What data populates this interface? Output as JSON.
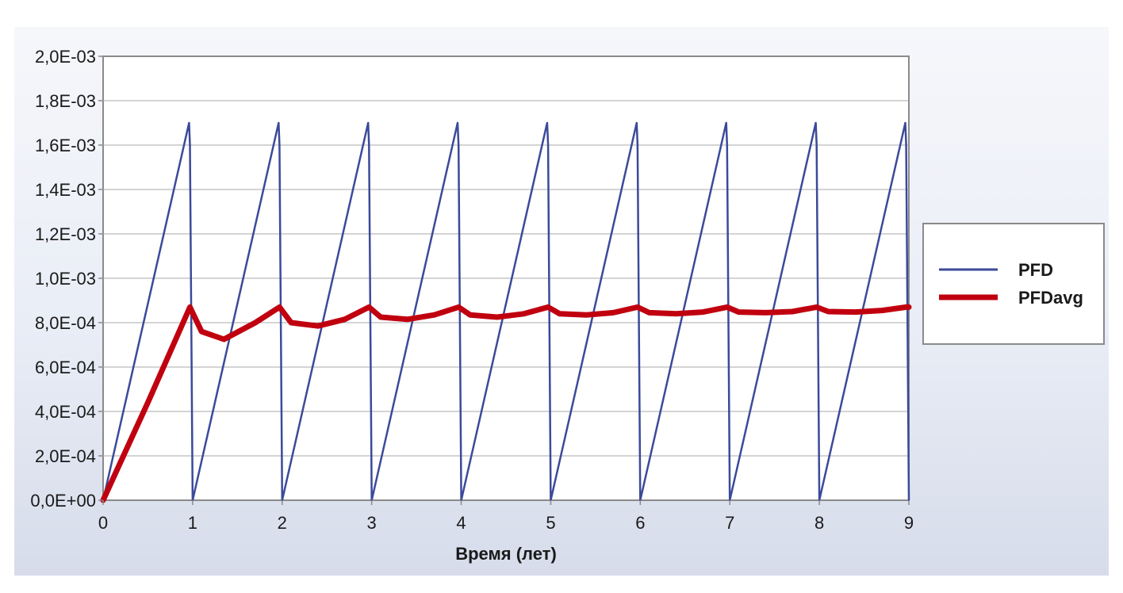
{
  "chart_data": {
    "type": "line",
    "title": "",
    "xlabel": "Время (лет)",
    "ylabel": "",
    "xlim": [
      0,
      9
    ],
    "ylim": [
      0,
      0.002
    ],
    "x_ticks": [
      "0",
      "1",
      "2",
      "3",
      "4",
      "5",
      "6",
      "7",
      "8",
      "9"
    ],
    "y_ticks": [
      "0,0E+00",
      "2,0E-04",
      "4,0E-04",
      "6,0E-04",
      "8,0E-04",
      "1,0E-03",
      "1,2E-03",
      "1,4E-03",
      "1,6E-03",
      "1,8E-03",
      "2,0E-03"
    ],
    "grid": "horizontal",
    "legend_position": "right",
    "series": [
      {
        "name": "PFD",
        "color": "#3b4a9a",
        "x": [
          0,
          0.96,
          0.97,
          1.0,
          1.96,
          1.97,
          2.0,
          2.96,
          2.97,
          3.0,
          3.96,
          3.97,
          4.0,
          4.96,
          4.97,
          5.0,
          5.96,
          5.97,
          6.0,
          6.96,
          6.97,
          7.0,
          7.96,
          7.97,
          8.0,
          8.96,
          8.97,
          9.0
        ],
        "y": [
          0,
          0.0017,
          0.0016,
          0,
          0.0017,
          0.0016,
          0,
          0.0017,
          0.0016,
          0,
          0.0017,
          0.0016,
          0,
          0.0017,
          0.0016,
          0,
          0.0017,
          0.0016,
          0,
          0.0017,
          0.0016,
          0,
          0.0017,
          0.0016,
          0,
          0.0017,
          0.0016,
          0
        ]
      },
      {
        "name": "PFDavg",
        "color": "#c0000f",
        "x": [
          0,
          0.5,
          0.97,
          1.1,
          1.35,
          1.7,
          1.97,
          2.1,
          2.4,
          2.7,
          2.97,
          3.1,
          3.4,
          3.7,
          3.97,
          4.1,
          4.4,
          4.7,
          4.97,
          5.1,
          5.4,
          5.7,
          5.97,
          6.1,
          6.4,
          6.7,
          6.97,
          7.1,
          7.4,
          7.7,
          7.97,
          8.1,
          8.4,
          8.7,
          8.97,
          9.0
        ],
        "y": [
          0,
          0.00044,
          0.00087,
          0.00076,
          0.000725,
          0.0008,
          0.00087,
          0.0008,
          0.000785,
          0.000815,
          0.00087,
          0.000825,
          0.000815,
          0.000835,
          0.00087,
          0.000835,
          0.000825,
          0.00084,
          0.00087,
          0.00084,
          0.000835,
          0.000845,
          0.00087,
          0.000845,
          0.00084,
          0.000848,
          0.00087,
          0.000848,
          0.000845,
          0.00085,
          0.00087,
          0.00085,
          0.000848,
          0.000855,
          0.00087,
          0.00087
        ]
      }
    ]
  }
}
